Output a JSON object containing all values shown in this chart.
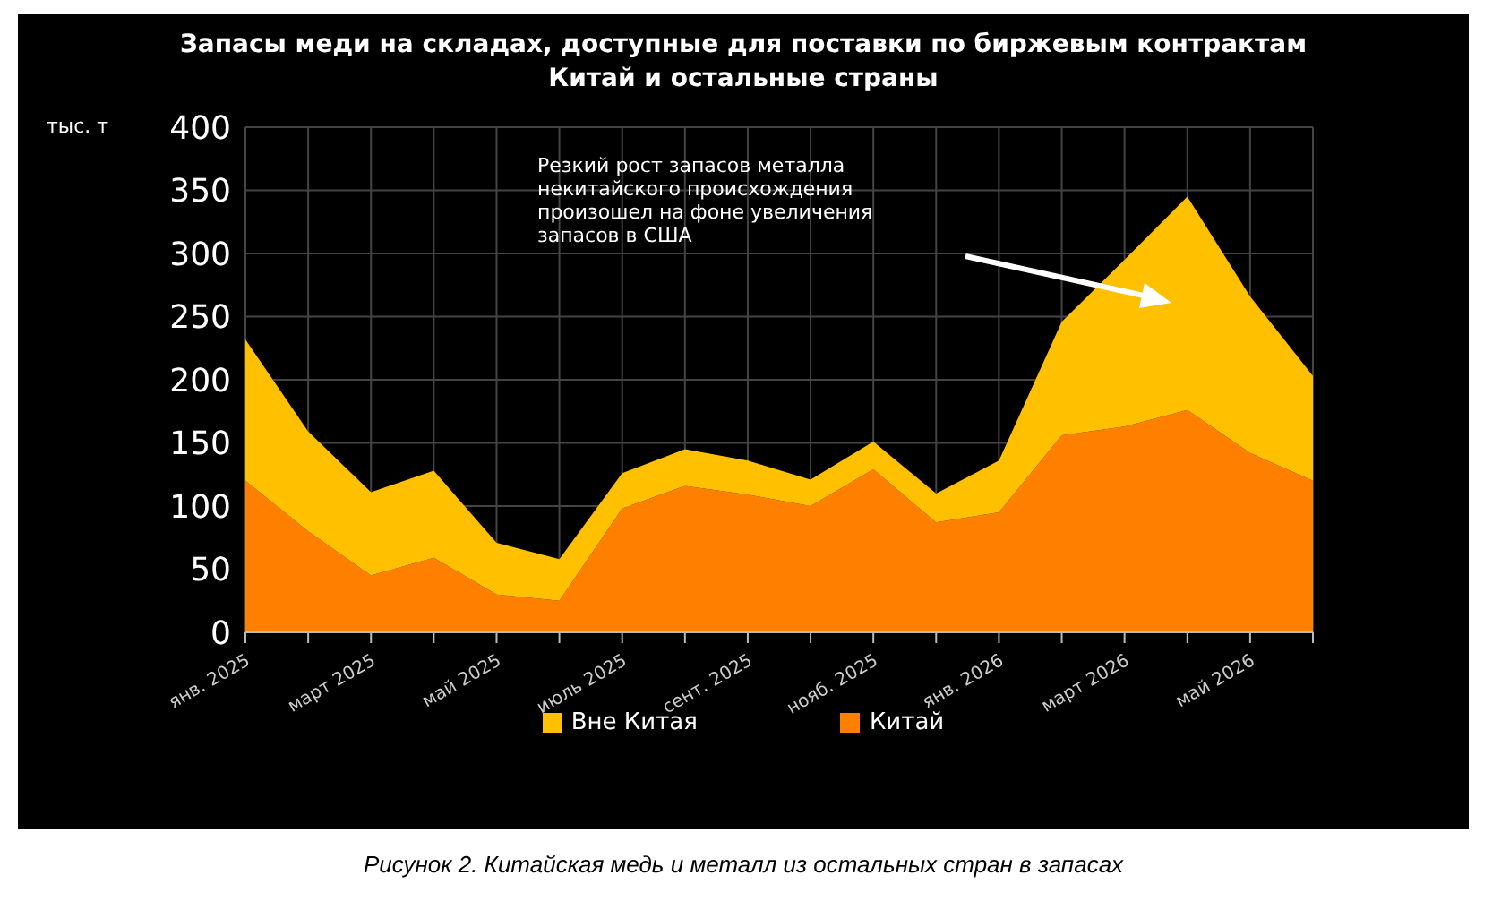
{
  "chart_data": {
    "type": "area",
    "stacked": true,
    "title": "Запасы меди на складах, доступные для поставки по биржевым контрактам",
    "subtitle": "Китай и остальные страны",
    "ylabel": "тыс. т",
    "categories": [
      "янв. 2025",
      null,
      "март 2025",
      null,
      "май 2025",
      null,
      "июль 2025",
      null,
      "сент. 2025",
      null,
      "нояб. 2025",
      null,
      "янв. 2026",
      null,
      "март 2026",
      null,
      "май 2026",
      null
    ],
    "series": [
      {
        "name": "Китай",
        "color": "#ff8000",
        "values": [
          120,
          80,
          45,
          59,
          30,
          25,
          98,
          116,
          109,
          100,
          129,
          87,
          95,
          156,
          163,
          176,
          142,
          120
        ]
      },
      {
        "name": "Вне Китая",
        "color": "#ffc000",
        "values": [
          112,
          79,
          66,
          69,
          41,
          33,
          28,
          29,
          27,
          21,
          22,
          23,
          41,
          90,
          132,
          169,
          124,
          83
        ]
      }
    ],
    "ylim": [
      0,
      400
    ],
    "yticks": [
      0,
      50,
      100,
      150,
      200,
      250,
      300,
      350,
      400
    ],
    "grid": true,
    "legend": "bottom",
    "annotations": [
      "Резкий рост запасов металла некитайского происхождения произошел на фоне увеличения запасов в США",
      "Рисунок 2. Китайская медь и металл из остальных стран в запасах"
    ]
  }
}
